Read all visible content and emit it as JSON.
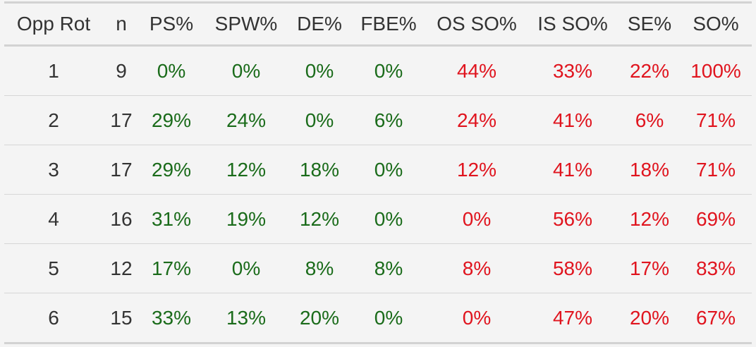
{
  "columns": [
    "Opp Rot",
    "n",
    "PS%",
    "SPW%",
    "DE%",
    "FBE%",
    "OS SO%",
    "IS SO%",
    "SE%",
    "SO%"
  ],
  "rows": [
    [
      "1",
      "9",
      "0%",
      "0%",
      "0%",
      "0%",
      "44%",
      "33%",
      "22%",
      "100%"
    ],
    [
      "2",
      "17",
      "29%",
      "24%",
      "0%",
      "6%",
      "24%",
      "41%",
      "6%",
      "71%"
    ],
    [
      "3",
      "17",
      "29%",
      "12%",
      "18%",
      "0%",
      "12%",
      "41%",
      "18%",
      "71%"
    ],
    [
      "4",
      "16",
      "31%",
      "19%",
      "12%",
      "0%",
      "0%",
      "56%",
      "12%",
      "69%"
    ],
    [
      "5",
      "12",
      "17%",
      "0%",
      "8%",
      "8%",
      "8%",
      "58%",
      "17%",
      "83%"
    ],
    [
      "6",
      "15",
      "33%",
      "13%",
      "20%",
      "0%",
      "0%",
      "47%",
      "20%",
      "67%"
    ]
  ],
  "colors": {
    "background": "#f4f4f4",
    "text": "#333333",
    "serving_stats": "#1a6b1a",
    "receiving_stats": "#e0141e",
    "rule": "#d2d2d2"
  }
}
